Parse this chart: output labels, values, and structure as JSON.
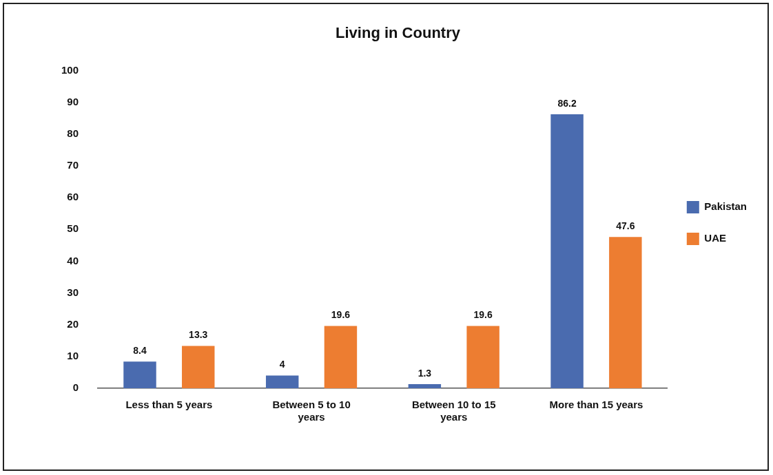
{
  "chart_data": {
    "type": "bar",
    "title": "Living in Country",
    "categories": [
      "Less than 5 years",
      "Between 5 to 10 years",
      "Between 10 to 15 years",
      "More than 15 years"
    ],
    "series": [
      {
        "name": "Pakistan",
        "color": "#4a6baf",
        "values": [
          8.4,
          4,
          1.3,
          86.2
        ]
      },
      {
        "name": "UAE",
        "color": "#ed7d31",
        "values": [
          13.3,
          19.6,
          19.6,
          47.6
        ]
      }
    ],
    "ylim": [
      0,
      100
    ],
    "yticks": [
      0,
      10,
      20,
      30,
      40,
      50,
      60,
      70,
      80,
      90,
      100
    ],
    "grid": false,
    "legend": "right",
    "data_labels": true
  }
}
